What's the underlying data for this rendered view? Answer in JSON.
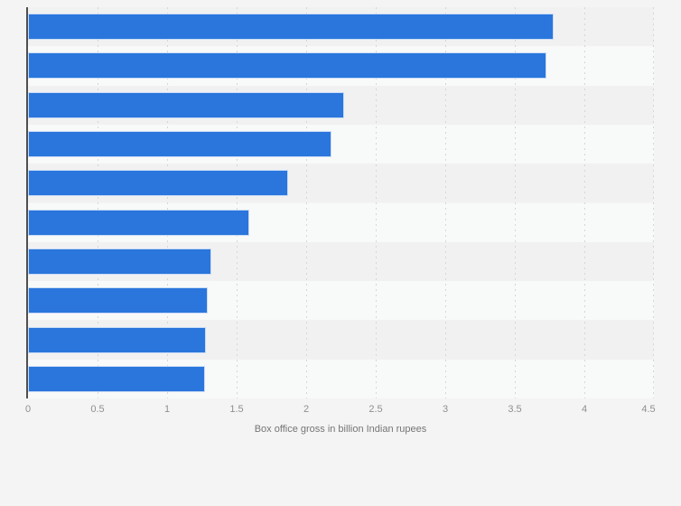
{
  "chart_data": {
    "type": "bar",
    "orientation": "horizontal",
    "title": "",
    "xlabel": "Box office gross in billion Indian rupees",
    "ylabel": "",
    "xlim": [
      0,
      4.5
    ],
    "x_ticks": [
      0,
      0.5,
      1,
      1.5,
      2,
      2.5,
      3,
      3.5,
      4,
      4.5
    ],
    "x_tick_labels": [
      "0",
      "0.5",
      "1",
      "1.5",
      "2",
      "2.5",
      "3",
      "3.5",
      "4",
      "4.5"
    ],
    "values": [
      3.78,
      3.73,
      2.27,
      2.18,
      1.87,
      1.59,
      1.32,
      1.29,
      1.28,
      1.27
    ],
    "category_labels_visible": false,
    "grid": "vertical-dashed",
    "legend": "none",
    "colors": {
      "bar": "#2a76dc",
      "page_background": "#f4f4f4",
      "band_dark": "#f1f1f2",
      "band_light": "#f8f9f9",
      "gridline": "#d6d6d6",
      "axis_line": "#4f4f4f",
      "tick_label": "#8f8f8f",
      "axis_title": "#757575"
    }
  }
}
